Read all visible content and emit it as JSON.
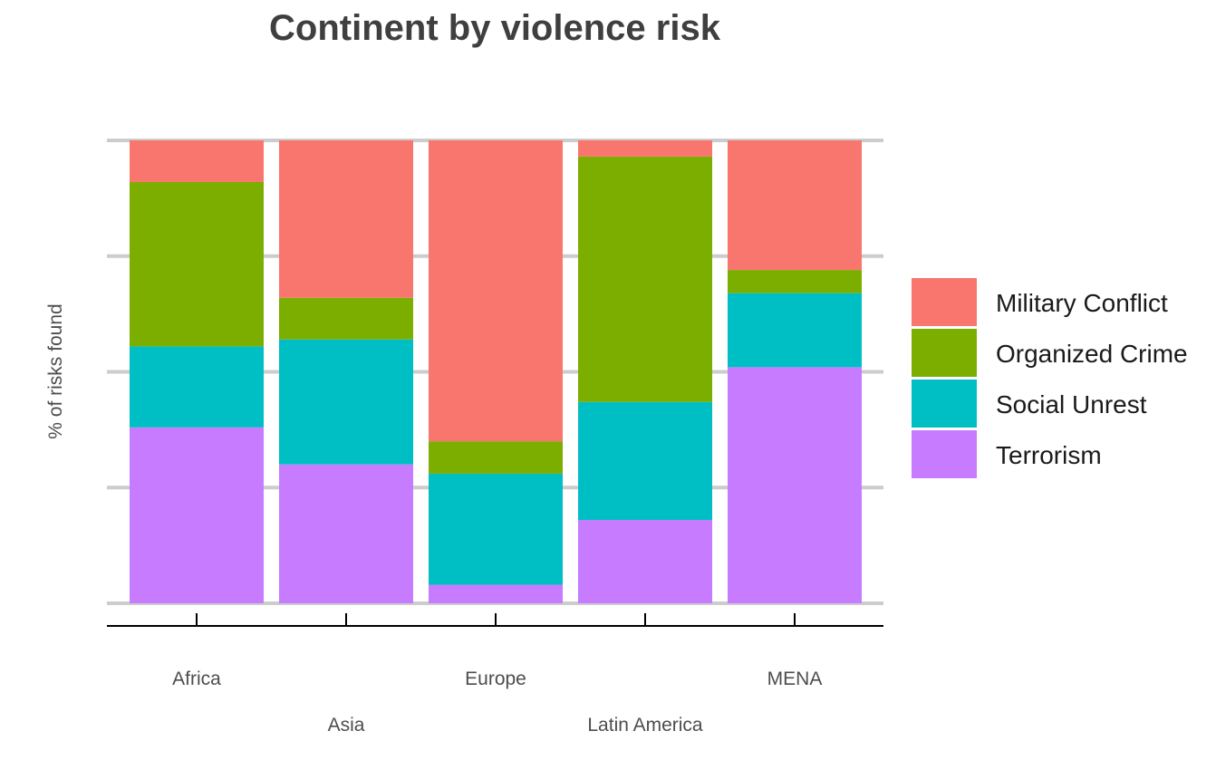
{
  "chart_data": {
    "type": "bar",
    "stacked": true,
    "title": "Continent by violence risk",
    "xlabel": "",
    "ylabel": "% of risks found",
    "ylim": [
      0,
      1
    ],
    "y_tick_labels_shown": false,
    "grid": "horizontal",
    "legend_position": "right",
    "categories": [
      "Africa",
      "Asia",
      "Europe",
      "Latin America",
      "MENA"
    ],
    "series": [
      {
        "name": "Terrorism",
        "color": "#C77CFF",
        "values": [
          0.38,
          0.3,
          0.04,
          0.18,
          0.51
        ]
      },
      {
        "name": "Social Unrest",
        "color": "#00BFC4",
        "values": [
          0.175,
          0.27,
          0.24,
          0.255,
          0.16
        ]
      },
      {
        "name": "Organized Crime",
        "color": "#7CAE00",
        "values": [
          0.355,
          0.09,
          0.07,
          0.53,
          0.05
        ]
      },
      {
        "name": "Military Conflict",
        "color": "#F8766D",
        "values": [
          0.09,
          0.34,
          0.65,
          0.035,
          0.28
        ]
      }
    ],
    "legend_order": [
      "Military Conflict",
      "Organized Crime",
      "Social Unrest",
      "Terrorism"
    ]
  }
}
